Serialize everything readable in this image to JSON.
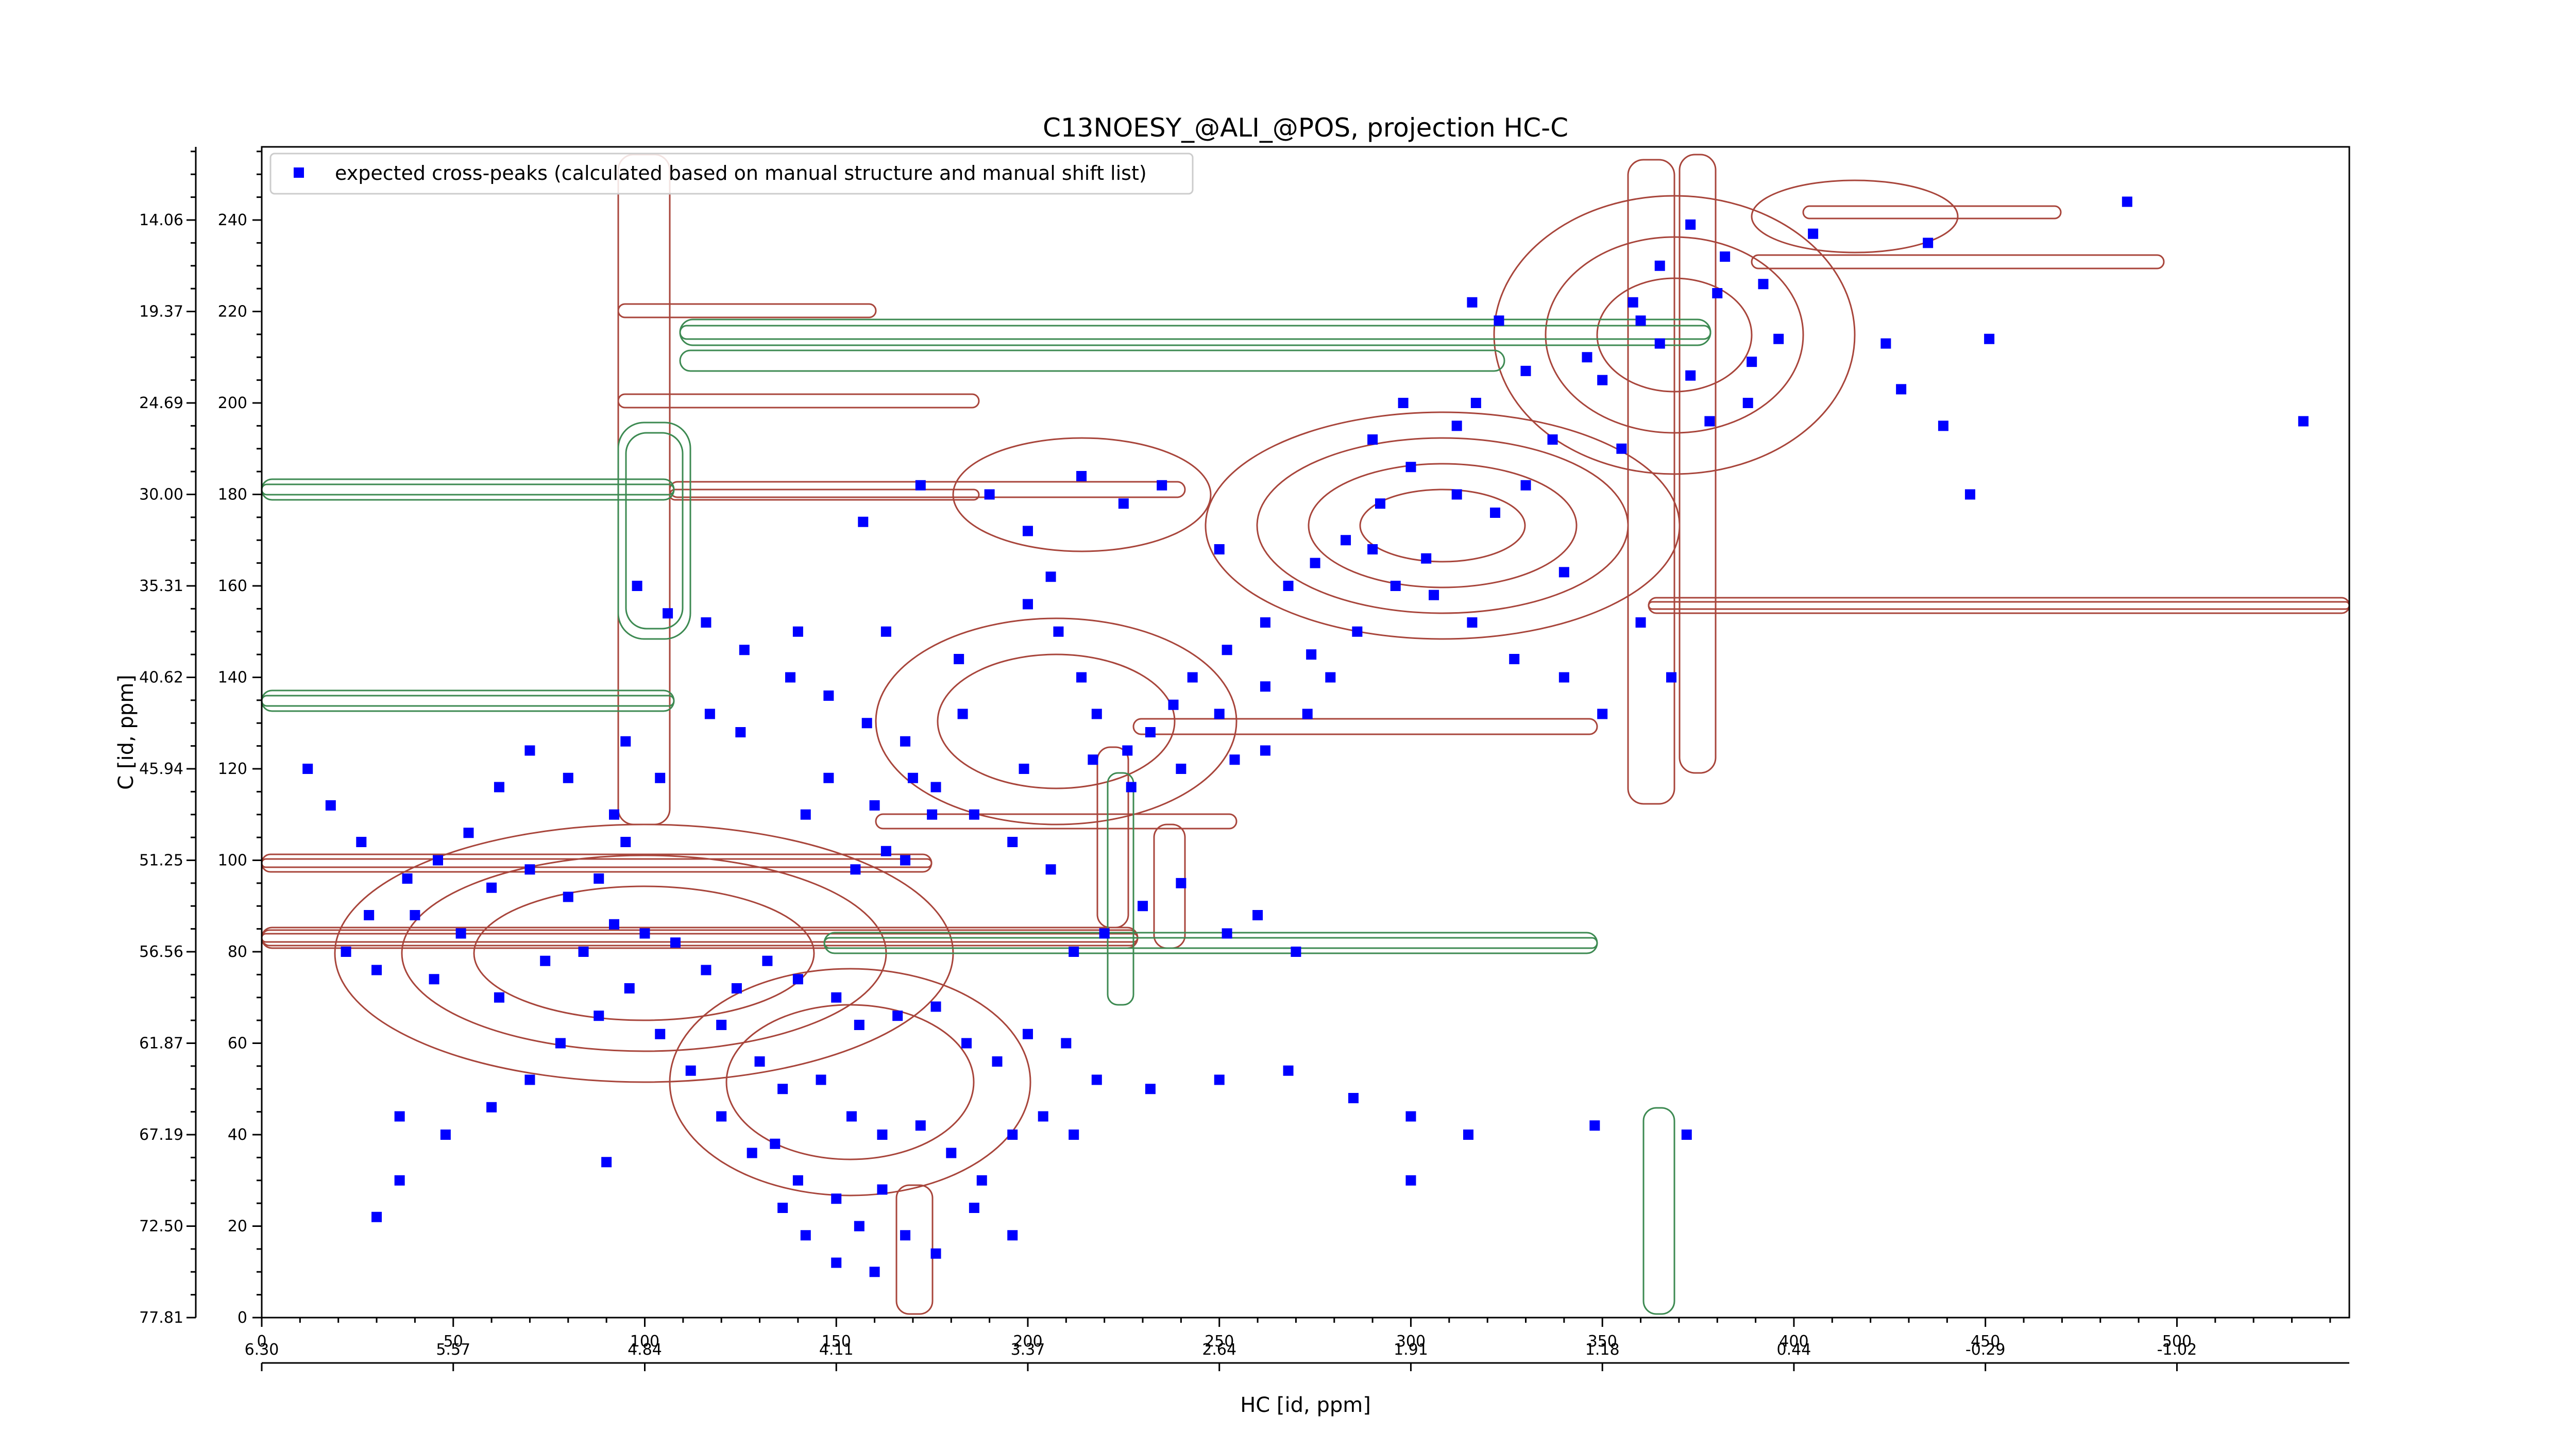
{
  "chart_data": {
    "type": "scatter",
    "title": "C13NOESY_@ALI_@POS, projection HC-C",
    "xlabel": "HC [id, ppm]",
    "ylabel": "C [id, ppm]",
    "xlim": [
      0,
      545
    ],
    "ylim": [
      0,
      256
    ],
    "x_ticks": [
      0,
      50,
      100,
      150,
      200,
      250,
      300,
      350,
      400,
      450,
      500
    ],
    "x_ticks_secondary": [
      "6.30",
      "5.57",
      "4.84",
      "4.11",
      "3.37",
      "2.64",
      "1.91",
      "1.18",
      "0.44",
      "-0.29",
      "-1.02"
    ],
    "y_ticks": [
      0,
      20,
      40,
      60,
      80,
      100,
      120,
      140,
      160,
      180,
      200,
      220,
      240
    ],
    "y_ticks_secondary": [
      "77.81",
      "72.50",
      "67.19",
      "61.87",
      "56.56",
      "51.25",
      "45.94",
      "40.62",
      "35.31",
      "30.00",
      "24.69",
      "19.37",
      "14.06"
    ],
    "legend": {
      "placement": "top-left",
      "entries": [
        "expected cross-peaks (calculated based on manual structure and manual shift list)"
      ]
    },
    "colors": {
      "marker": "#0000ff",
      "positive_contour": "#a8453b",
      "negative_contour": "#3d8a52"
    },
    "series": [
      {
        "name": "expected cross-peaks (calculated based on manual structure and manual shift list)",
        "points": [
          [
            487,
            244
          ],
          [
            435,
            235
          ],
          [
            405,
            237
          ],
          [
            373,
            239
          ],
          [
            382,
            232
          ],
          [
            392,
            226
          ],
          [
            396,
            214
          ],
          [
            424,
            213
          ],
          [
            451,
            214
          ],
          [
            428,
            203
          ],
          [
            439,
            195
          ],
          [
            446,
            180
          ],
          [
            533,
            196
          ],
          [
            388,
            200
          ],
          [
            389,
            209
          ],
          [
            380,
            224
          ],
          [
            365,
            230
          ],
          [
            360,
            218
          ],
          [
            350,
            205
          ],
          [
            355,
            190
          ],
          [
            337,
            192
          ],
          [
            330,
            182
          ],
          [
            322,
            176
          ],
          [
            312,
            180
          ],
          [
            300,
            186
          ],
          [
            292,
            178
          ],
          [
            283,
            170
          ],
          [
            275,
            165
          ],
          [
            268,
            160
          ],
          [
            262,
            152
          ],
          [
            252,
            146
          ],
          [
            243,
            140
          ],
          [
            238,
            134
          ],
          [
            232,
            128
          ],
          [
            226,
            124
          ],
          [
            218,
            132
          ],
          [
            214,
            140
          ],
          [
            208,
            150
          ],
          [
            200,
            172
          ],
          [
            190,
            180
          ],
          [
            172,
            182
          ],
          [
            157,
            174
          ],
          [
            200,
            156
          ],
          [
            206,
            162
          ],
          [
            250,
            168
          ],
          [
            235,
            182
          ],
          [
            225,
            178
          ],
          [
            214,
            184
          ],
          [
            306,
            158
          ],
          [
            316,
            152
          ],
          [
            327,
            144
          ],
          [
            340,
            140
          ],
          [
            350,
            132
          ],
          [
            360,
            152
          ],
          [
            368,
            140
          ],
          [
            340,
            163
          ],
          [
            312,
            195
          ],
          [
            316,
            222
          ],
          [
            330,
            207
          ],
          [
            323,
            218
          ],
          [
            365,
            213
          ],
          [
            373,
            206
          ],
          [
            378,
            196
          ],
          [
            358,
            222
          ],
          [
            346,
            210
          ],
          [
            317,
            200
          ],
          [
            298,
            200
          ],
          [
            290,
            192
          ],
          [
            304,
            166
          ],
          [
            296,
            160
          ],
          [
            286,
            150
          ],
          [
            279,
            140
          ],
          [
            290,
            168
          ],
          [
            274,
            145
          ],
          [
            262,
            138
          ],
          [
            250,
            132
          ],
          [
            273,
            132
          ],
          [
            254,
            122
          ],
          [
            262,
            124
          ],
          [
            240,
            120
          ],
          [
            227,
            116
          ],
          [
            217,
            122
          ],
          [
            199,
            120
          ],
          [
            183,
            132
          ],
          [
            182,
            144
          ],
          [
            163,
            150
          ],
          [
            140,
            150
          ],
          [
            125,
            128
          ],
          [
            148,
            118
          ],
          [
            160,
            112
          ],
          [
            170,
            118
          ],
          [
            175,
            110
          ],
          [
            163,
            102
          ],
          [
            155,
            98
          ],
          [
            168,
            100
          ],
          [
            142,
            110
          ],
          [
            117,
            132
          ],
          [
            95,
            126
          ],
          [
            95,
            104
          ],
          [
            88,
            96
          ],
          [
            80,
            92
          ],
          [
            70,
            98
          ],
          [
            60,
            94
          ],
          [
            52,
            84
          ],
          [
            40,
            88
          ],
          [
            28,
            88
          ],
          [
            22,
            80
          ],
          [
            30,
            76
          ],
          [
            45,
            74
          ],
          [
            62,
            70
          ],
          [
            74,
            78
          ],
          [
            84,
            80
          ],
          [
            92,
            86
          ],
          [
            100,
            84
          ],
          [
            108,
            82
          ],
          [
            116,
            76
          ],
          [
            124,
            72
          ],
          [
            132,
            78
          ],
          [
            140,
            74
          ],
          [
            150,
            70
          ],
          [
            156,
            64
          ],
          [
            166,
            66
          ],
          [
            176,
            68
          ],
          [
            184,
            60
          ],
          [
            192,
            56
          ],
          [
            200,
            62
          ],
          [
            210,
            60
          ],
          [
            218,
            52
          ],
          [
            232,
            50
          ],
          [
            250,
            52
          ],
          [
            268,
            54
          ],
          [
            285,
            48
          ],
          [
            300,
            44
          ],
          [
            315,
            40
          ],
          [
            348,
            42
          ],
          [
            372,
            40
          ],
          [
            120,
            64
          ],
          [
            130,
            56
          ],
          [
            136,
            50
          ],
          [
            146,
            52
          ],
          [
            154,
            44
          ],
          [
            162,
            40
          ],
          [
            172,
            42
          ],
          [
            180,
            36
          ],
          [
            188,
            30
          ],
          [
            196,
            40
          ],
          [
            204,
            44
          ],
          [
            212,
            40
          ],
          [
            134,
            38
          ],
          [
            140,
            30
          ],
          [
            150,
            26
          ],
          [
            156,
            20
          ],
          [
            162,
            28
          ],
          [
            168,
            18
          ],
          [
            176,
            14
          ],
          [
            186,
            24
          ],
          [
            196,
            18
          ],
          [
            96,
            72
          ],
          [
            88,
            66
          ],
          [
            78,
            60
          ],
          [
            70,
            52
          ],
          [
            60,
            46
          ],
          [
            48,
            40
          ],
          [
            36,
            30
          ],
          [
            30,
            22
          ],
          [
            104,
            62
          ],
          [
            112,
            54
          ],
          [
            120,
            44
          ],
          [
            128,
            36
          ],
          [
            136,
            24
          ],
          [
            142,
            18
          ],
          [
            150,
            12
          ],
          [
            160,
            10
          ],
          [
            36,
            44
          ],
          [
            90,
            34
          ],
          [
            300,
            30
          ],
          [
            240,
            95
          ],
          [
            230,
            90
          ],
          [
            220,
            84
          ],
          [
            212,
            80
          ],
          [
            252,
            84
          ],
          [
            260,
            88
          ],
          [
            270,
            80
          ],
          [
            206,
            98
          ],
          [
            196,
            104
          ],
          [
            186,
            110
          ],
          [
            176,
            116
          ],
          [
            168,
            126
          ],
          [
            158,
            130
          ],
          [
            148,
            136
          ],
          [
            138,
            140
          ],
          [
            126,
            146
          ],
          [
            116,
            152
          ],
          [
            106,
            154
          ],
          [
            98,
            160
          ],
          [
            104,
            118
          ],
          [
            92,
            110
          ],
          [
            80,
            118
          ],
          [
            70,
            124
          ],
          [
            62,
            116
          ],
          [
            54,
            106
          ],
          [
            46,
            100
          ],
          [
            38,
            96
          ],
          [
            26,
            104
          ],
          [
            18,
            112
          ],
          [
            12,
            120
          ]
        ]
      }
    ]
  }
}
